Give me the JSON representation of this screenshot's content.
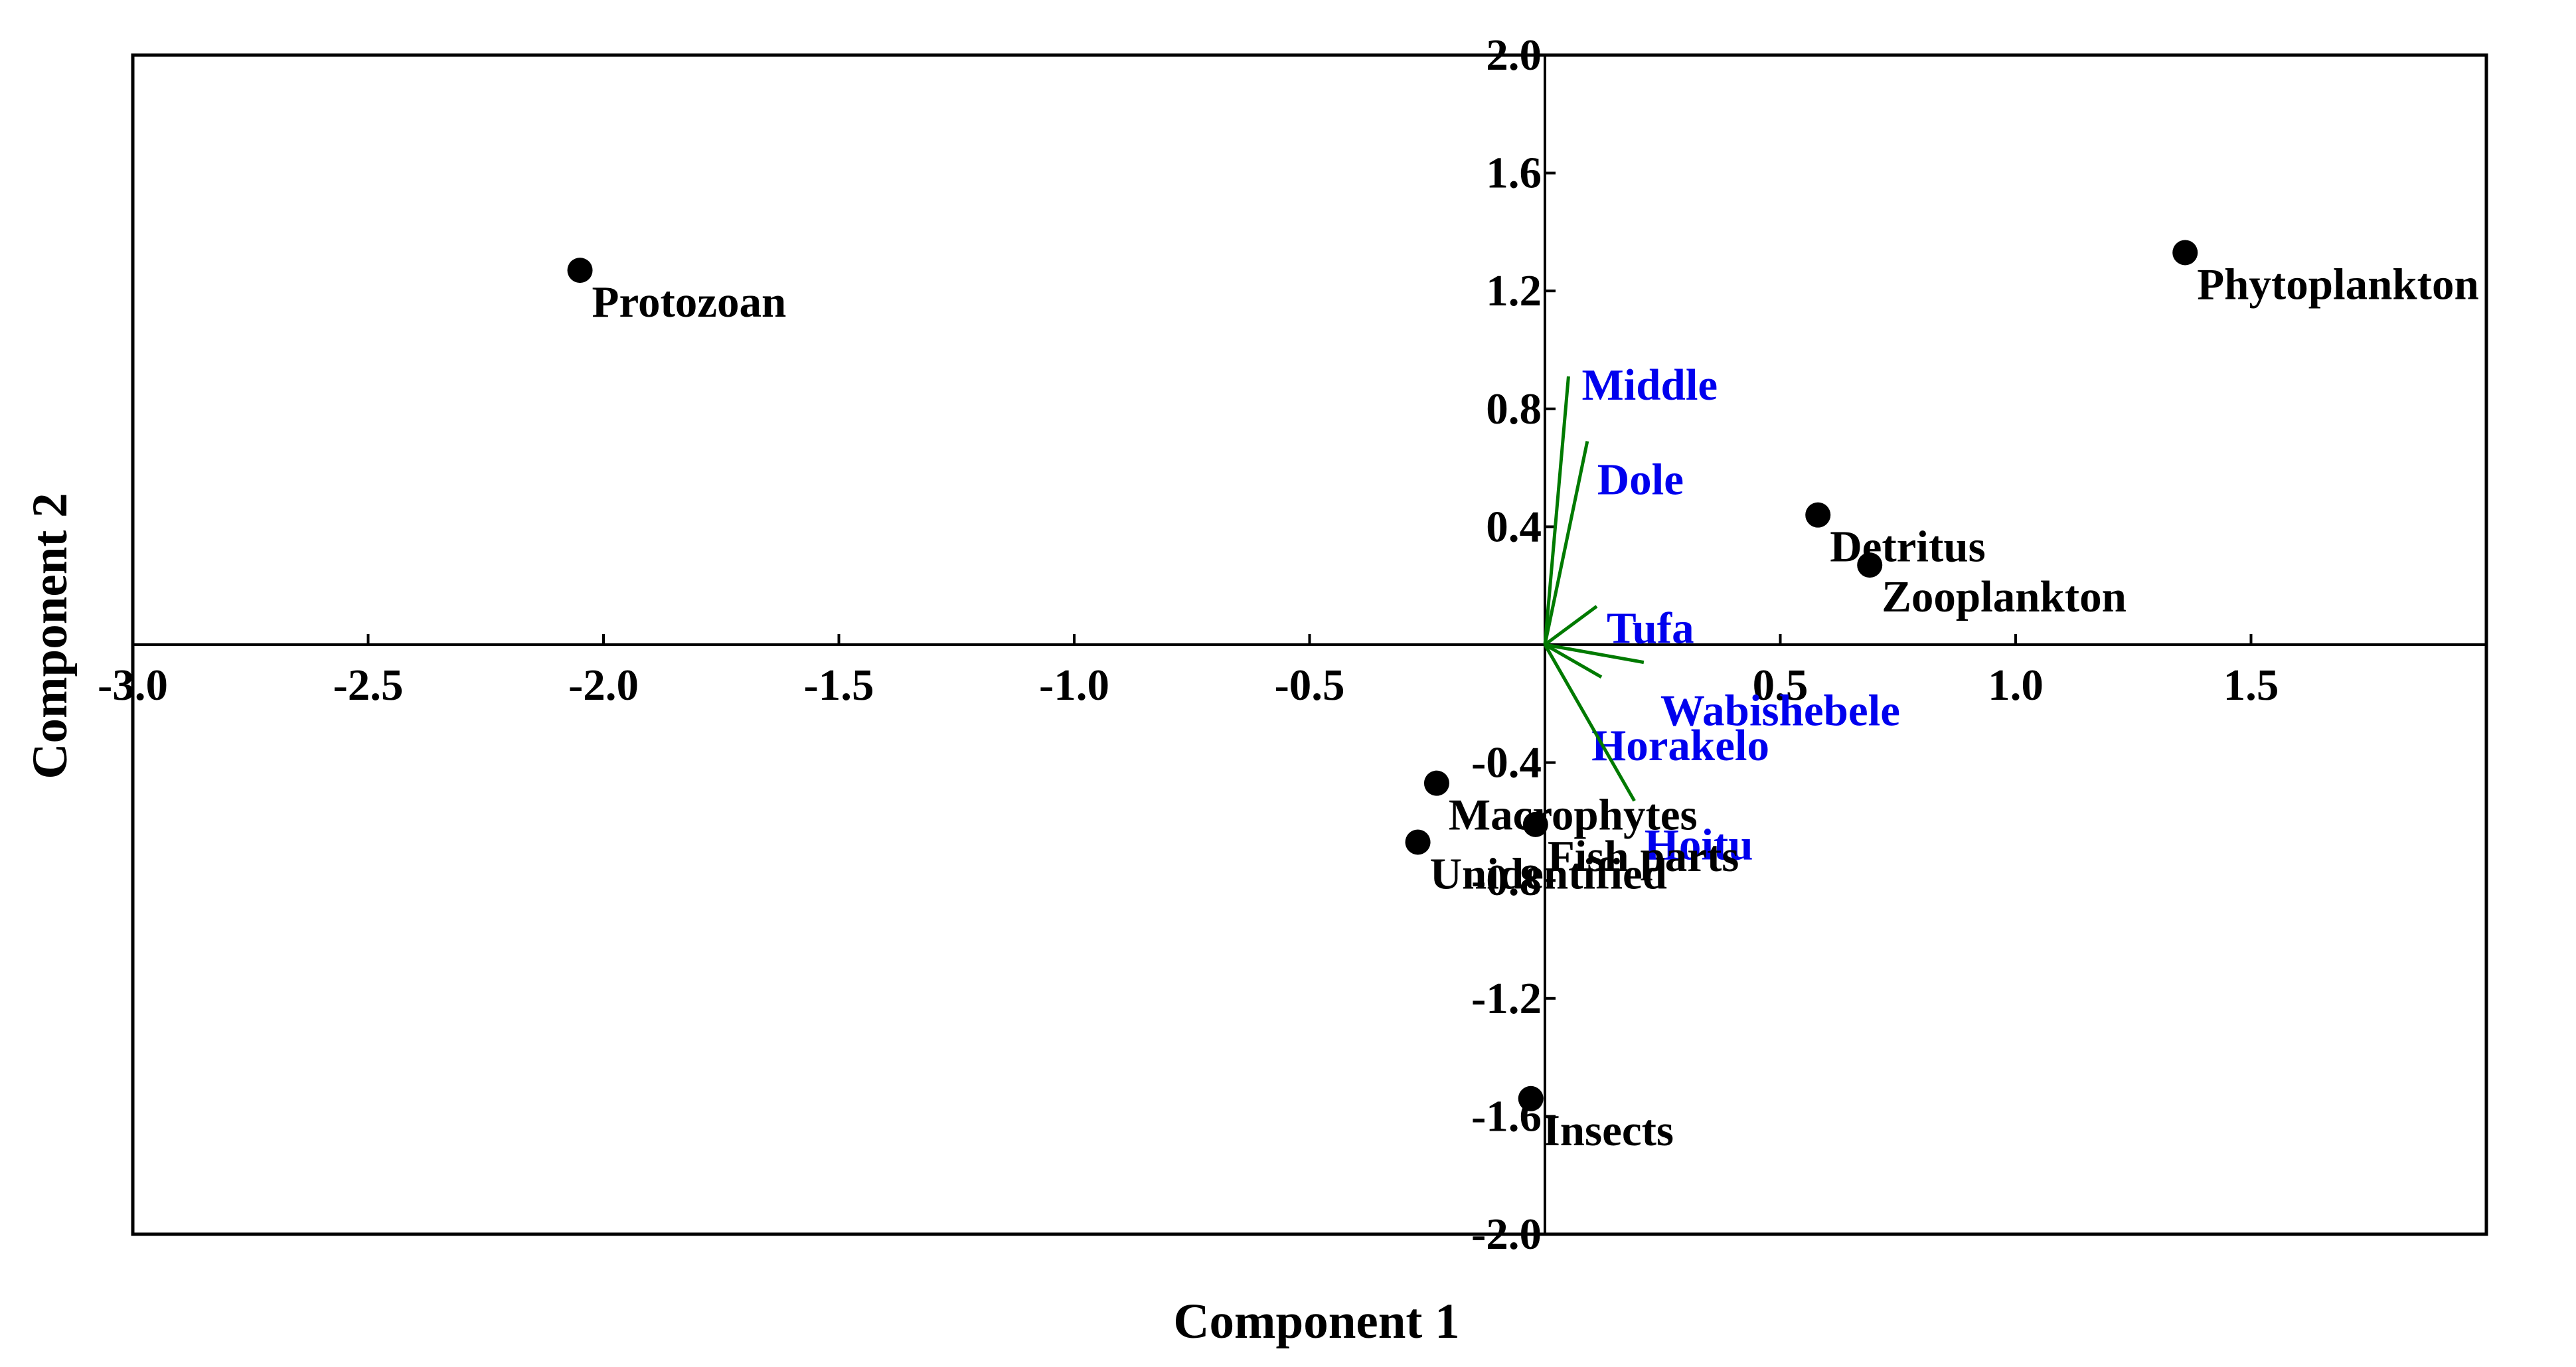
{
  "chart_data": {
    "type": "scatter",
    "subtype": "pca-biplot",
    "xlabel": "Component 1",
    "ylabel": "Component 2",
    "xlim": [
      -3.0,
      2.0
    ],
    "ylim": [
      -2.0,
      2.0
    ],
    "x_ticks": [
      -3.0,
      -2.5,
      -2.0,
      -1.5,
      -1.0,
      -0.5,
      0.5,
      1.0,
      1.5
    ],
    "x_tick_labels": [
      "-3.0",
      "-2.5",
      "-2.0",
      "-1.5",
      "-1.0",
      "-0.5",
      "0.5",
      "1.0",
      "1.5"
    ],
    "y_ticks": [
      2.0,
      1.6,
      1.2,
      0.8,
      0.4,
      -0.4,
      -0.8,
      -1.2,
      -1.6,
      -2.0
    ],
    "y_tick_labels": [
      "2.0",
      "1.6",
      "1.2",
      "0.8",
      "0.4",
      "-0.4",
      "-0.8",
      "-1.2",
      "-1.6",
      "-2.0"
    ],
    "grid": false,
    "colors": {
      "points": "#000000",
      "point_labels": "#000000",
      "vectors": "#007a00",
      "vector_labels": "#0000ee"
    },
    "points": [
      {
        "label": "Protozoan",
        "x": -2.05,
        "y": 1.27
      },
      {
        "label": "Phytoplankton",
        "x": 1.36,
        "y": 1.33
      },
      {
        "label": "Detritus",
        "x": 0.58,
        "y": 0.44
      },
      {
        "label": "Zooplankton",
        "x": 0.69,
        "y": 0.27
      },
      {
        "label": "Macrophytes",
        "x": -0.23,
        "y": -0.47
      },
      {
        "label": "Fish parts",
        "x": -0.02,
        "y": -0.61
      },
      {
        "label": "Unidentified",
        "x": -0.27,
        "y": -0.67
      },
      {
        "label": "Insects",
        "x": -0.03,
        "y": -1.54
      }
    ],
    "vectors": [
      {
        "label": "Middle",
        "x": 0.05,
        "y": 0.91
      },
      {
        "label": "Dole",
        "x": 0.09,
        "y": 0.69
      },
      {
        "label": "Tufa",
        "x": 0.11,
        "y": 0.13
      },
      {
        "label": "Wabishebele",
        "x": 0.21,
        "y": -0.06
      },
      {
        "label": "Horakelo",
        "x": 0.12,
        "y": -0.11
      },
      {
        "label": "Hoitu",
        "x": 0.19,
        "y": -0.53
      }
    ]
  }
}
